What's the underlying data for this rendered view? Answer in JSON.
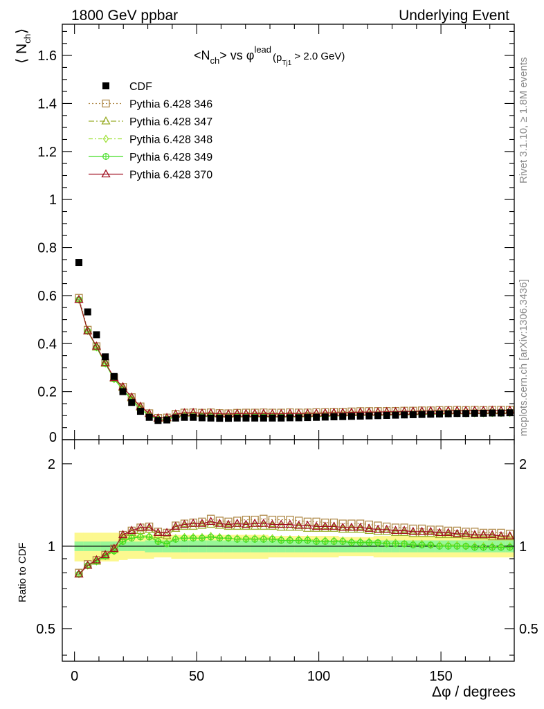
{
  "header": {
    "left": "1800 GeV ppbar",
    "right": "Underlying Event"
  },
  "side_labels": {
    "rivet": "Rivet 3.1.10, ≥ 1.8M events",
    "mcplots": "mcplots.cern.ch [arXiv:1306.3436]"
  },
  "chart_data": {
    "type": "scatter",
    "title_parts": {
      "a": "<N",
      "b": "ch",
      "c": "> vs φ",
      "d": "lead",
      "e": "(p",
      "f": "Tj1",
      "g": " > 2.0 GeV)"
    },
    "ylabel": {
      "main": "⟨ N",
      "sub": "ch",
      "close": "⟩"
    },
    "ratio_ylabel": "Ratio to CDF",
    "xlabel": "Δφ / degrees",
    "xlim": [
      -5,
      180
    ],
    "ylim": [
      0,
      1.73
    ],
    "ratio_ylim": [
      0.38,
      2.45
    ],
    "ratio_scale": "log",
    "xticks": [
      0,
      50,
      100,
      150
    ],
    "yticks": [
      0,
      0.2,
      0.4,
      0.6,
      0.8,
      1,
      1.2,
      1.4,
      1.6
    ],
    "yticklabels": [
      "0",
      "0.2",
      "0.4",
      "0.6",
      "0.8",
      "1",
      "1.2",
      "1.4",
      "1.6"
    ],
    "ratio_yticks": [
      0.5,
      1,
      2
    ],
    "ratio_yticklabels": [
      "0.5",
      "1",
      "2"
    ],
    "legend_position": "top-left",
    "x": [
      1.8,
      5.4,
      9,
      12.6,
      16.2,
      19.8,
      23.4,
      27,
      30.6,
      34.2,
      37.8,
      41.4,
      45,
      48.6,
      52.2,
      55.8,
      59.4,
      63,
      66.6,
      70.2,
      73.8,
      77.4,
      81,
      84.6,
      88.2,
      91.8,
      95.4,
      99,
      102.6,
      106.2,
      109.8,
      113.4,
      117,
      120.6,
      124.2,
      127.8,
      131.4,
      135,
      138.6,
      142.2,
      145.8,
      149.4,
      153,
      156.6,
      160.2,
      163.8,
      167.4,
      171,
      174.6,
      178.2
    ],
    "cdf": {
      "name": "CDF",
      "color": "#000000",
      "y": [
        0.738,
        0.532,
        0.437,
        0.345,
        0.263,
        0.2,
        0.155,
        0.118,
        0.093,
        0.08,
        0.082,
        0.09,
        0.093,
        0.093,
        0.091,
        0.09,
        0.089,
        0.089,
        0.09,
        0.09,
        0.09,
        0.09,
        0.09,
        0.09,
        0.091,
        0.091,
        0.092,
        0.093,
        0.094,
        0.095,
        0.096,
        0.097,
        0.098,
        0.099,
        0.1,
        0.101,
        0.102,
        0.103,
        0.104,
        0.105,
        0.106,
        0.107,
        0.108,
        0.109,
        0.109,
        0.11,
        0.11,
        0.111,
        0.111,
        0.112
      ],
      "band_inner": [
        0.04,
        0.04,
        0.04,
        0.04,
        0.04,
        0.04,
        0.04,
        0.04,
        0.05,
        0.05,
        0.05,
        0.05,
        0.05,
        0.05,
        0.05,
        0.05,
        0.05,
        0.05,
        0.05,
        0.05,
        0.05,
        0.05,
        0.05,
        0.05,
        0.05,
        0.05,
        0.05,
        0.05,
        0.05,
        0.05,
        0.05,
        0.05,
        0.05,
        0.05,
        0.05,
        0.05,
        0.05,
        0.05,
        0.05,
        0.05,
        0.05,
        0.05,
        0.05,
        0.05,
        0.05,
        0.05,
        0.05,
        0.05,
        0.05,
        0.05
      ],
      "band_outer": [
        0.12,
        0.12,
        0.12,
        0.12,
        0.12,
        0.11,
        0.1,
        0.1,
        0.1,
        0.09,
        0.09,
        0.1,
        0.1,
        0.1,
        0.1,
        0.1,
        0.1,
        0.1,
        0.1,
        0.1,
        0.1,
        0.1,
        0.09,
        0.09,
        0.09,
        0.09,
        0.09,
        0.09,
        0.09,
        0.09,
        0.08,
        0.08,
        0.08,
        0.08,
        0.09,
        0.09,
        0.09,
        0.09,
        0.09,
        0.09,
        0.09,
        0.09,
        0.09,
        0.09,
        0.09,
        0.09,
        0.09,
        0.09,
        0.09,
        0.09
      ]
    },
    "series": [
      {
        "name": "Pythia 6.428 346",
        "color": "#b08a4a",
        "marker": "open-square",
        "dash": "2,3",
        "ratio": [
          0.8,
          0.86,
          0.89,
          0.93,
          0.98,
          1.1,
          1.14,
          1.17,
          1.18,
          1.13,
          1.12,
          1.19,
          1.21,
          1.22,
          1.23,
          1.26,
          1.24,
          1.23,
          1.24,
          1.25,
          1.25,
          1.26,
          1.25,
          1.25,
          1.25,
          1.24,
          1.23,
          1.23,
          1.22,
          1.22,
          1.21,
          1.21,
          1.21,
          1.2,
          1.19,
          1.18,
          1.17,
          1.17,
          1.16,
          1.16,
          1.15,
          1.15,
          1.14,
          1.14,
          1.13,
          1.13,
          1.12,
          1.12,
          1.12,
          1.11
        ]
      },
      {
        "name": "Pythia 6.428 347",
        "color": "#9aad2a",
        "marker": "open-triangle",
        "dash": "8,3,2,3",
        "ratio": [
          0.79,
          0.85,
          0.88,
          0.92,
          0.97,
          1.08,
          1.12,
          1.14,
          1.15,
          1.1,
          1.09,
          1.16,
          1.18,
          1.18,
          1.19,
          1.2,
          1.19,
          1.18,
          1.18,
          1.18,
          1.18,
          1.18,
          1.18,
          1.17,
          1.17,
          1.17,
          1.16,
          1.16,
          1.16,
          1.16,
          1.15,
          1.15,
          1.15,
          1.14,
          1.13,
          1.13,
          1.12,
          1.12,
          1.11,
          1.11,
          1.11,
          1.1,
          1.1,
          1.1,
          1.09,
          1.09,
          1.09,
          1.08,
          1.08,
          1.08
        ]
      },
      {
        "name": "Pythia 6.428 348",
        "color": "#9ae030",
        "marker": "open-diamond",
        "dash": "6,3,2,3",
        "ratio": [
          0.79,
          0.85,
          0.88,
          0.92,
          0.96,
          1.05,
          1.08,
          1.09,
          1.09,
          1.05,
          1.03,
          1.07,
          1.08,
          1.08,
          1.08,
          1.09,
          1.08,
          1.07,
          1.07,
          1.07,
          1.07,
          1.07,
          1.07,
          1.06,
          1.06,
          1.06,
          1.06,
          1.05,
          1.05,
          1.05,
          1.05,
          1.04,
          1.04,
          1.04,
          1.03,
          1.03,
          1.03,
          1.02,
          1.02,
          1.02,
          1.01,
          1.01,
          1.01,
          1.01,
          1.0,
          1.0,
          1.0,
          1.0,
          1.0,
          1.0
        ]
      },
      {
        "name": "Pythia 6.428 349",
        "color": "#40dd20",
        "marker": "open-circle",
        "dash": "",
        "ratio": [
          0.79,
          0.85,
          0.88,
          0.92,
          0.96,
          1.04,
          1.07,
          1.08,
          1.08,
          1.04,
          1.02,
          1.06,
          1.07,
          1.07,
          1.07,
          1.08,
          1.07,
          1.07,
          1.06,
          1.06,
          1.06,
          1.06,
          1.06,
          1.05,
          1.05,
          1.05,
          1.05,
          1.04,
          1.04,
          1.04,
          1.04,
          1.03,
          1.03,
          1.03,
          1.03,
          1.02,
          1.02,
          1.02,
          1.01,
          1.01,
          1.01,
          1.0,
          1.0,
          1.0,
          1.0,
          0.99,
          0.99,
          0.99,
          0.99,
          0.99
        ]
      },
      {
        "name": "Pythia 6.428 370",
        "color": "#a01020",
        "marker": "open-triangle",
        "dash": "",
        "ratio": [
          0.79,
          0.85,
          0.89,
          0.93,
          0.98,
          1.1,
          1.14,
          1.17,
          1.17,
          1.12,
          1.12,
          1.18,
          1.2,
          1.21,
          1.21,
          1.23,
          1.21,
          1.2,
          1.21,
          1.2,
          1.21,
          1.21,
          1.2,
          1.2,
          1.2,
          1.19,
          1.19,
          1.18,
          1.18,
          1.18,
          1.17,
          1.17,
          1.17,
          1.16,
          1.15,
          1.15,
          1.14,
          1.14,
          1.13,
          1.13,
          1.13,
          1.12,
          1.12,
          1.11,
          1.11,
          1.1,
          1.1,
          1.1,
          1.09,
          1.09
        ]
      }
    ]
  }
}
